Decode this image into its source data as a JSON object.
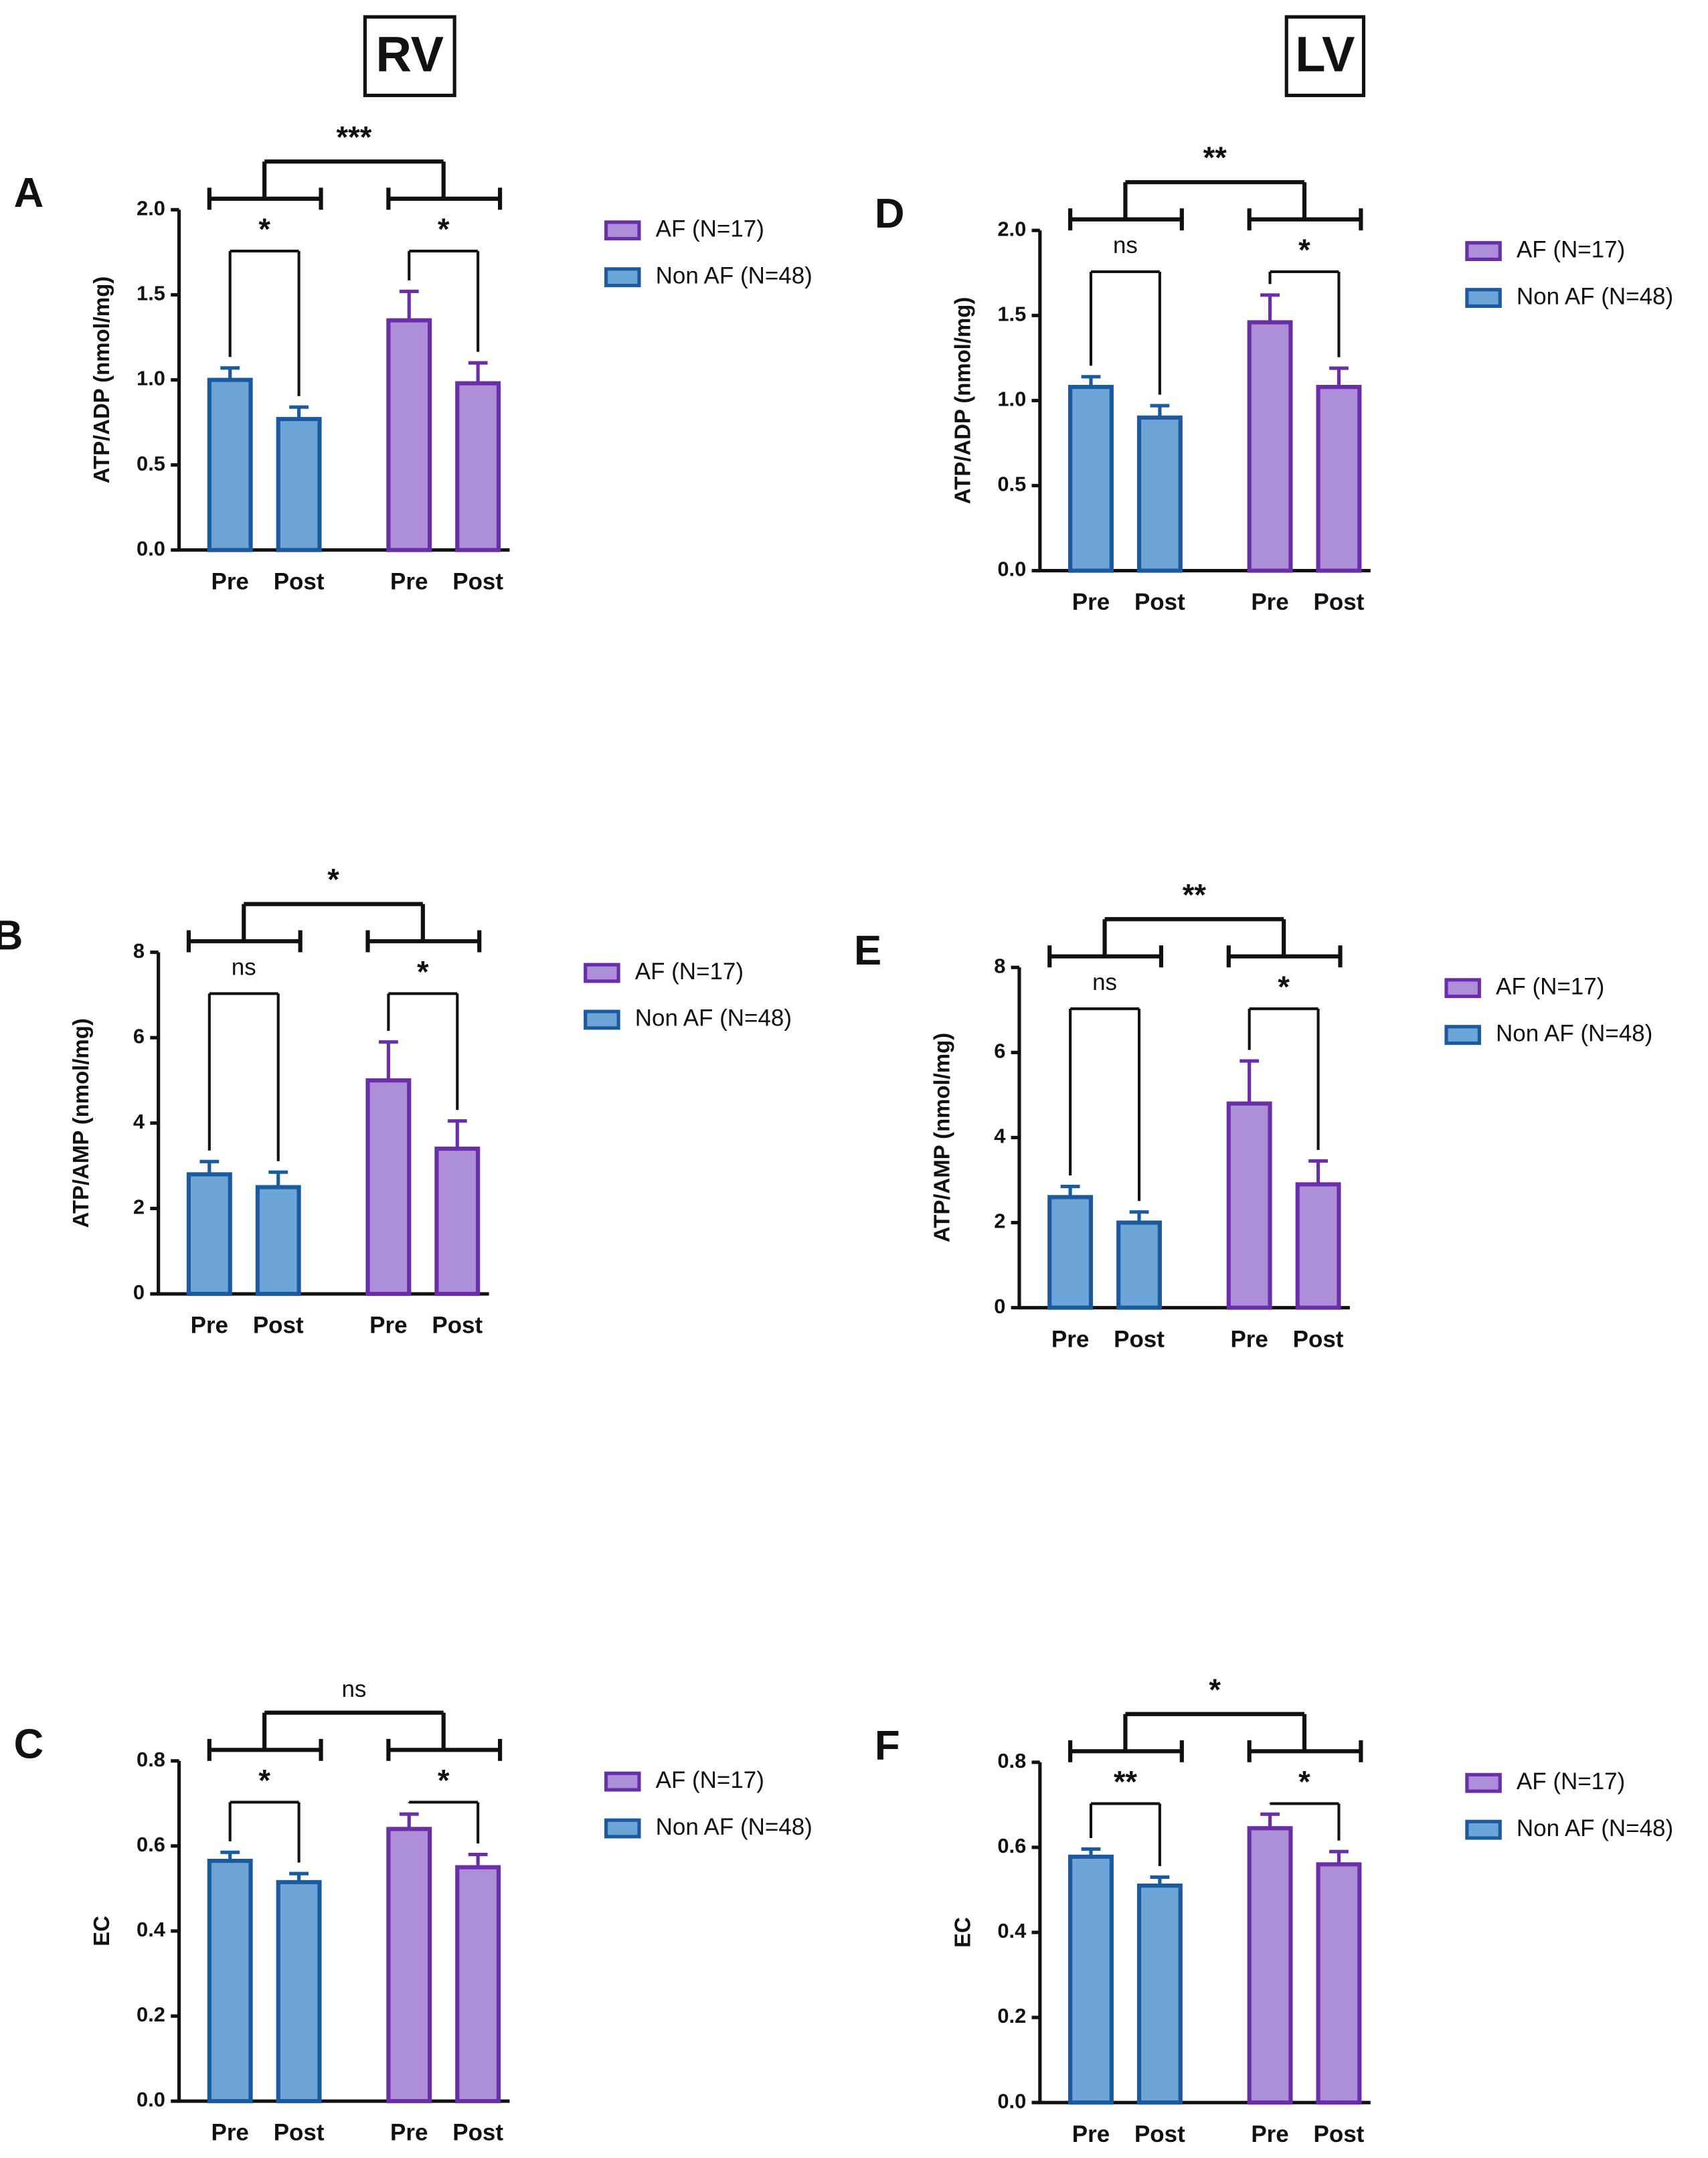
{
  "headers": [
    "RV",
    "LV"
  ],
  "chart_data": [
    {
      "type": "bar",
      "panel": "A",
      "ylabel": "ATP/ADP (nmol/mg)",
      "categories": [
        "Pre",
        "Post",
        "Pre",
        "Post"
      ],
      "series": [
        {
          "name": "AF (N=17)",
          "color": "#ad8ed8",
          "edge": "#6a2fa8",
          "values": [
            null,
            null,
            1.35,
            0.98
          ],
          "errors": [
            null,
            null,
            0.17,
            0.12
          ]
        },
        {
          "name": "Non AF (N=48)",
          "color": "#6ea5d8",
          "edge": "#1b5a9e",
          "values": [
            1.0,
            0.77,
            null,
            null
          ],
          "errors": [
            0.07,
            0.07,
            null,
            null
          ]
        }
      ],
      "ylim": [
        0,
        2
      ],
      "yticks": [
        {
          "value": 0,
          "label": "0.0"
        },
        {
          "value": 0.5,
          "label": "0.5"
        },
        {
          "value": 1,
          "label": "1.0"
        },
        {
          "value": 1.5,
          "label": "1.5"
        },
        {
          "value": 2,
          "label": "2.0"
        }
      ],
      "pair_labels": [
        "*",
        "*"
      ],
      "group_label": "***"
    },
    {
      "type": "bar",
      "panel": "B",
      "ylabel": "ATP/AMP (nmol/mg)",
      "categories": [
        "Pre",
        "Post",
        "Pre",
        "Post"
      ],
      "series": [
        {
          "name": "AF (N=17)",
          "color": "#ad8ed8",
          "edge": "#6a2fa8",
          "values": [
            null,
            null,
            5.0,
            3.4
          ],
          "errors": [
            null,
            null,
            0.9,
            0.65
          ]
        },
        {
          "name": "Non AF (N=48)",
          "color": "#6ea5d8",
          "edge": "#1b5a9e",
          "values": [
            2.8,
            2.5,
            null,
            null
          ],
          "errors": [
            0.3,
            0.35,
            null,
            null
          ]
        }
      ],
      "ylim": [
        0,
        8
      ],
      "yticks": [
        0,
        2,
        4,
        6,
        8
      ],
      "pair_labels": [
        "ns",
        "*"
      ],
      "group_label": "*"
    },
    {
      "type": "bar",
      "panel": "C",
      "ylabel": "EC",
      "categories": [
        "Pre",
        "Post",
        "Pre",
        "Post"
      ],
      "series": [
        {
          "name": "AF (N=17)",
          "color": "#ad8ed8",
          "edge": "#6a2fa8",
          "values": [
            null,
            null,
            0.64,
            0.55
          ],
          "errors": [
            null,
            null,
            0.035,
            0.03
          ]
        },
        {
          "name": "Non AF (N=48)",
          "color": "#6ea5d8",
          "edge": "#1b5a9e",
          "values": [
            0.565,
            0.515,
            null,
            null
          ],
          "errors": [
            0.02,
            0.02,
            null,
            null
          ]
        }
      ],
      "ylim": [
        0,
        0.8
      ],
      "yticks": [
        {
          "value": 0,
          "label": "0.0"
        },
        0.2,
        0.4,
        0.6,
        0.8
      ],
      "pair_labels": [
        "*",
        "*"
      ],
      "group_label": "ns"
    },
    {
      "type": "bar",
      "panel": "D",
      "ylabel": "ATP/ADP (nmol/mg)",
      "categories": [
        "Pre",
        "Post",
        "Pre",
        "Post"
      ],
      "series": [
        {
          "name": "AF (N=17)",
          "color": "#ad8ed8",
          "edge": "#6a2fa8",
          "values": [
            null,
            null,
            1.46,
            1.08
          ],
          "errors": [
            null,
            null,
            0.16,
            0.11
          ]
        },
        {
          "name": "Non AF (N=48)",
          "color": "#6ea5d8",
          "edge": "#1b5a9e",
          "values": [
            1.08,
            0.9,
            null,
            null
          ],
          "errors": [
            0.06,
            0.07,
            null,
            null
          ]
        }
      ],
      "ylim": [
        0,
        2
      ],
      "yticks": [
        {
          "value": 0,
          "label": "0.0"
        },
        {
          "value": 0.5,
          "label": "0.5"
        },
        {
          "value": 1,
          "label": "1.0"
        },
        {
          "value": 1.5,
          "label": "1.5"
        },
        {
          "value": 2,
          "label": "2.0"
        }
      ],
      "pair_labels": [
        "ns",
        "*"
      ],
      "group_label": "**"
    },
    {
      "type": "bar",
      "panel": "E",
      "ylabel": "ATP/AMP (nmol/mg)",
      "categories": [
        "Pre",
        "Post",
        "Pre",
        "Post"
      ],
      "series": [
        {
          "name": "AF (N=17)",
          "color": "#ad8ed8",
          "edge": "#6a2fa8",
          "values": [
            null,
            null,
            4.8,
            2.9
          ],
          "errors": [
            null,
            null,
            1.0,
            0.55
          ]
        },
        {
          "name": "Non AF (N=48)",
          "color": "#6ea5d8",
          "edge": "#1b5a9e",
          "values": [
            2.6,
            2.0,
            null,
            null
          ],
          "errors": [
            0.25,
            0.25,
            null,
            null
          ]
        }
      ],
      "ylim": [
        0,
        8
      ],
      "yticks": [
        0,
        2,
        4,
        6,
        8
      ],
      "pair_labels": [
        "ns",
        "*"
      ],
      "group_label": "**"
    },
    {
      "type": "bar",
      "panel": "F",
      "ylabel": "EC",
      "categories": [
        "Pre",
        "Post",
        "Pre",
        "Post"
      ],
      "series": [
        {
          "name": "AF (N=17)",
          "color": "#ad8ed8",
          "edge": "#6a2fa8",
          "values": [
            null,
            null,
            0.645,
            0.56
          ],
          "errors": [
            null,
            null,
            0.033,
            0.03
          ]
        },
        {
          "name": "Non AF (N=48)",
          "color": "#6ea5d8",
          "edge": "#1b5a9e",
          "values": [
            0.578,
            0.51,
            null,
            null
          ],
          "errors": [
            0.018,
            0.02,
            null,
            null
          ]
        }
      ],
      "ylim": [
        0,
        0.8
      ],
      "yticks": [
        {
          "value": 0,
          "label": "0.0"
        },
        0.2,
        0.4,
        0.6,
        0.8
      ],
      "pair_labels": [
        "**",
        "*"
      ],
      "group_label": "*"
    }
  ]
}
